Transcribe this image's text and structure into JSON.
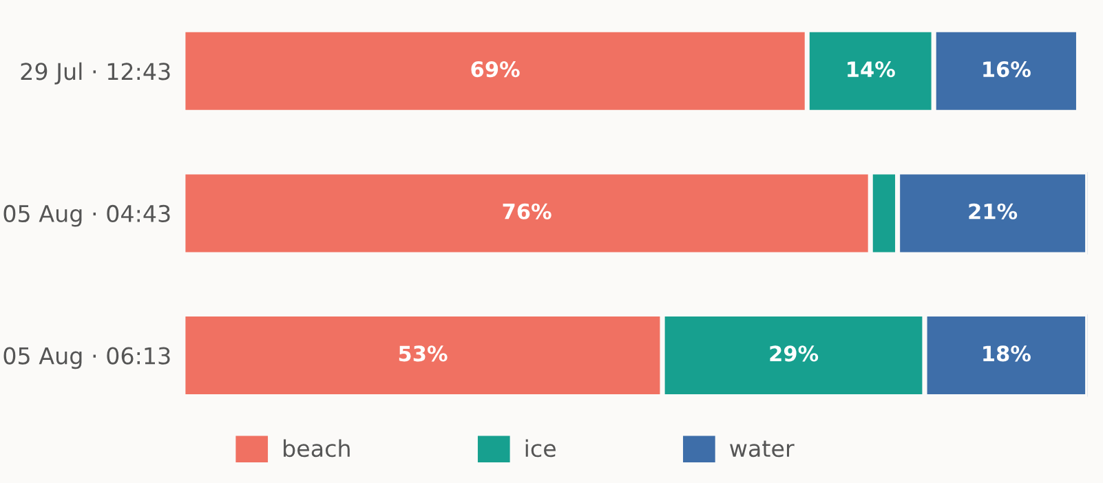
{
  "chart_data": {
    "type": "bar",
    "orientation": "horizontal",
    "stacked": true,
    "tick_labels": "y",
    "legend": "bottom",
    "grid": false,
    "categories": [
      "29 Jul · 12:43",
      "05 Aug · 04:43",
      "05 Aug · 06:13"
    ],
    "series": [
      {
        "name": "beach",
        "color": "#f07162",
        "values": [
          69,
          76,
          53
        ],
        "value_labels": [
          "69%",
          "76%",
          "53%"
        ]
      },
      {
        "name": "ice",
        "color": "#17a08f",
        "values": [
          14,
          3,
          29
        ],
        "value_labels": [
          "14%",
          null,
          "29%"
        ]
      },
      {
        "name": "water",
        "color": "#3e6ea9",
        "values": [
          16,
          21,
          18
        ],
        "value_labels": [
          "16%",
          "21%",
          "18%"
        ]
      }
    ]
  }
}
